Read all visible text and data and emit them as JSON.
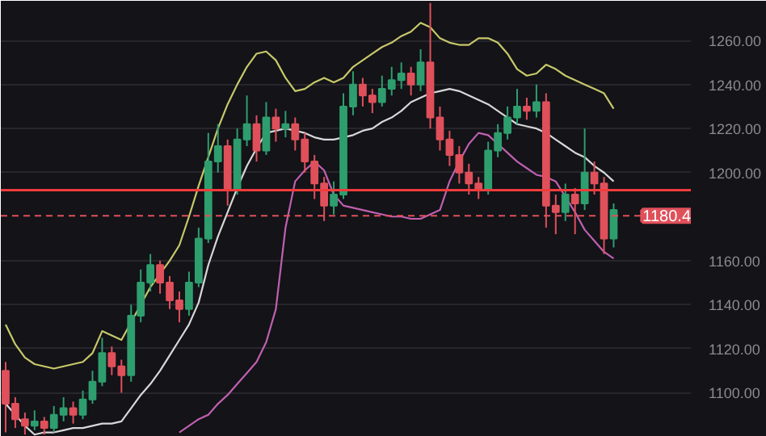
{
  "chart_data": {
    "type": "candlestick",
    "categories": [
      null,
      null,
      null,
      null,
      null,
      null,
      null,
      null,
      null,
      null,
      null,
      null,
      null,
      null,
      null,
      null,
      null,
      null,
      null,
      null,
      null,
      null,
      null,
      null,
      null,
      null,
      null,
      null,
      null,
      null,
      null,
      null,
      null,
      null,
      null,
      null,
      null,
      null,
      null,
      null,
      null,
      null,
      null,
      null,
      null,
      null,
      null,
      null,
      null,
      null,
      null,
      null,
      null,
      null,
      null,
      null,
      null,
      null,
      null,
      null,
      null,
      null,
      null,
      null
    ],
    "ohlc": [
      [
        1110,
        1114,
        1082,
        1095
      ],
      [
        1095,
        1098,
        1084,
        1088
      ],
      [
        1088,
        1091,
        1081,
        1085
      ],
      [
        1085,
        1092,
        1083,
        1087
      ],
      [
        1087,
        1089,
        1081,
        1084
      ],
      [
        1084,
        1094,
        1082,
        1090
      ],
      [
        1090,
        1098,
        1087,
        1093
      ],
      [
        1093,
        1096,
        1086,
        1090
      ],
      [
        1090,
        1101,
        1088,
        1097
      ],
      [
        1097,
        1110,
        1095,
        1105
      ],
      [
        1105,
        1125,
        1103,
        1118
      ],
      [
        1118,
        1121,
        1108,
        1112
      ],
      [
        1112,
        1115,
        1100,
        1108
      ],
      [
        1108,
        1140,
        1105,
        1135
      ],
      [
        1135,
        1156,
        1132,
        1150
      ],
      [
        1150,
        1163,
        1146,
        1158
      ],
      [
        1158,
        1160,
        1145,
        1150
      ],
      [
        1150,
        1153,
        1138,
        1142
      ],
      [
        1142,
        1146,
        1132,
        1138
      ],
      [
        1138,
        1155,
        1135,
        1150
      ],
      [
        1150,
        1175,
        1148,
        1170
      ],
      [
        1170,
        1218,
        1168,
        1205
      ],
      [
        1205,
        1222,
        1200,
        1212
      ],
      [
        1212,
        1215,
        1185,
        1192
      ],
      [
        1192,
        1220,
        1190,
        1215
      ],
      [
        1215,
        1235,
        1212,
        1222
      ],
      [
        1222,
        1226,
        1205,
        1210
      ],
      [
        1210,
        1232,
        1208,
        1225
      ],
      [
        1225,
        1229,
        1214,
        1220
      ],
      [
        1220,
        1228,
        1216,
        1222
      ],
      [
        1222,
        1225,
        1210,
        1215
      ],
      [
        1215,
        1218,
        1200,
        1205
      ],
      [
        1205,
        1208,
        1188,
        1195
      ],
      [
        1195,
        1198,
        1178,
        1185
      ],
      [
        1185,
        1196,
        1181,
        1190
      ],
      [
        1190,
        1236,
        1188,
        1230
      ],
      [
        1230,
        1246,
        1226,
        1240
      ],
      [
        1240,
        1243,
        1230,
        1235
      ],
      [
        1235,
        1238,
        1227,
        1232
      ],
      [
        1232,
        1244,
        1230,
        1238
      ],
      [
        1238,
        1248,
        1235,
        1242
      ],
      [
        1242,
        1250,
        1238,
        1245
      ],
      [
        1245,
        1248,
        1235,
        1240
      ],
      [
        1240,
        1256,
        1237,
        1250
      ],
      [
        1250,
        1277,
        1220,
        1225
      ],
      [
        1225,
        1230,
        1210,
        1215
      ],
      [
        1215,
        1219,
        1203,
        1208
      ],
      [
        1208,
        1212,
        1195,
        1200
      ],
      [
        1200,
        1204,
        1190,
        1195
      ],
      [
        1195,
        1198,
        1188,
        1192
      ],
      [
        1192,
        1214,
        1190,
        1210
      ],
      [
        1210,
        1222,
        1207,
        1218
      ],
      [
        1218,
        1230,
        1215,
        1225
      ],
      [
        1225,
        1238,
        1222,
        1230
      ],
      [
        1230,
        1234,
        1224,
        1228
      ],
      [
        1228,
        1240,
        1225,
        1232
      ],
      [
        1232,
        1236,
        1175,
        1185
      ],
      [
        1185,
        1190,
        1172,
        1182
      ],
      [
        1182,
        1195,
        1178,
        1190
      ],
      [
        1190,
        1193,
        1172,
        1186
      ],
      [
        1186,
        1220,
        1183,
        1200
      ],
      [
        1200,
        1205,
        1190,
        1195
      ],
      [
        1195,
        1198,
        1163,
        1170
      ],
      [
        1170,
        1186,
        1166,
        1183
      ]
    ],
    "colors": [
      "#e0505a",
      "#e0505a",
      "#e0505a",
      "#2e9e6e",
      "#e0505a",
      "#2e9e6e",
      "#2e9e6e",
      "#e0505a",
      "#2e9e6e",
      "#2e9e6e",
      "#2e9e6e",
      "#e0505a",
      "#e0505a",
      "#2e9e6e",
      "#2e9e6e",
      "#2e9e6e",
      "#e0505a",
      "#e0505a",
      "#e0505a",
      "#2e9e6e",
      "#2e9e6e",
      "#2e9e6e",
      "#2e9e6e",
      "#e0505a",
      "#2e9e6e",
      "#2e9e6e",
      "#e0505a",
      "#2e9e6e",
      "#e0505a",
      "#2e9e6e",
      "#e0505a",
      "#e0505a",
      "#e0505a",
      "#e0505a",
      "#2e9e6e",
      "#2e9e6e",
      "#2e9e6e",
      "#e0505a",
      "#e0505a",
      "#2e9e6e",
      "#2e9e6e",
      "#2e9e6e",
      "#e0505a",
      "#2e9e6e",
      "#e0505a",
      "#e0505a",
      "#e0505a",
      "#e0505a",
      "#e0505a",
      "#e0505a",
      "#2e9e6e",
      "#2e9e6e",
      "#2e9e6e",
      "#2e9e6e",
      "#e0505a",
      "#2e9e6e",
      "#e0505a",
      "#e0505a",
      "#2e9e6e",
      "#e0505a",
      "#2e9e6e",
      "#e0505a",
      "#e0505a",
      "#2e9e6e"
    ],
    "series": [
      {
        "type": "line",
        "color": "#c8c86a",
        "values": [
          1131,
          1122,
          1116,
          1113,
          1112,
          1111,
          1112,
          1113,
          1114,
          1118,
          1128,
          1126,
          1124,
          1132,
          1140,
          1148,
          1154,
          1160,
          1167,
          1180,
          1194,
          1207,
          1220,
          1231,
          1240,
          1248,
          1254,
          1255,
          1251,
          1243,
          1237,
          1238,
          1241,
          1243,
          1241,
          1243,
          1248,
          1251,
          1254,
          1257,
          1259,
          1262,
          1264,
          1268,
          1266,
          1261,
          1259,
          1258,
          1258,
          1261,
          1261,
          1259,
          1254,
          1247,
          1244,
          1245,
          1249,
          1247,
          1244,
          1242,
          1240,
          1238,
          1236,
          1229
        ]
      },
      {
        "type": "line",
        "color": "#d8d8d8",
        "values": [
          1095,
          1090,
          1085,
          1081,
          1082,
          1082,
          1083,
          1084,
          1084,
          1085,
          1086,
          1086,
          1087,
          1093,
          1099,
          1104,
          1110,
          1117,
          1124,
          1131,
          1141,
          1158,
          1171,
          1182,
          1193,
          1203,
          1211,
          1218,
          1219,
          1220,
          1219,
          1218,
          1216,
          1215,
          1215,
          1216,
          1217,
          1219,
          1220,
          1223,
          1225,
          1228,
          1232,
          1234,
          1236,
          1237,
          1238,
          1237,
          1235,
          1233,
          1231,
          1228,
          1225,
          1222,
          1221,
          1220,
          1218,
          1215,
          1212,
          1209,
          1207,
          1203,
          1200,
          1196
        ]
      },
      {
        "type": "line",
        "color": "#c060b0",
        "values": [
          null,
          null,
          null,
          null,
          null,
          null,
          null,
          null,
          null,
          null,
          null,
          null,
          null,
          null,
          null,
          null,
          null,
          null,
          1082,
          1085,
          1088,
          1090,
          1095,
          1099,
          1104,
          1109,
          1114,
          1123,
          1138,
          1175,
          1196,
          1201,
          1205,
          1201,
          1190,
          1185,
          1184,
          1183,
          1182,
          1181,
          1180,
          1180,
          1179,
          1179,
          1181,
          1183,
          1196,
          1205,
          1213,
          1218,
          1217,
          1213,
          1209,
          1205,
          1202,
          1199,
          1198,
          1196,
          1189,
          1182,
          1174,
          1169,
          1164,
          1161
        ]
      }
    ],
    "ylim": [
      1080,
      1278
    ],
    "yticks": [
      {
        "value": 1100,
        "label": "1100.00"
      },
      {
        "value": 1120,
        "label": "1120.00"
      },
      {
        "value": 1140,
        "label": "1140.00"
      },
      {
        "value": 1160,
        "label": "1160.00"
      },
      {
        "value": 1200,
        "label": "1200.00"
      },
      {
        "value": 1220,
        "label": "1220.00"
      },
      {
        "value": 1240,
        "label": "1240.00"
      },
      {
        "value": 1260,
        "label": "1260.00"
      }
    ],
    "grid": "y",
    "tick_labels": "y",
    "ref_lines": [
      {
        "axis": "y",
        "value": 1180.4,
        "label": "1180.4",
        "color": "#e0505a",
        "line_style": "dashed"
      },
      {
        "axis": "y",
        "value": 1192,
        "color": "#f03c3c",
        "line_style": "solid"
      }
    ]
  }
}
